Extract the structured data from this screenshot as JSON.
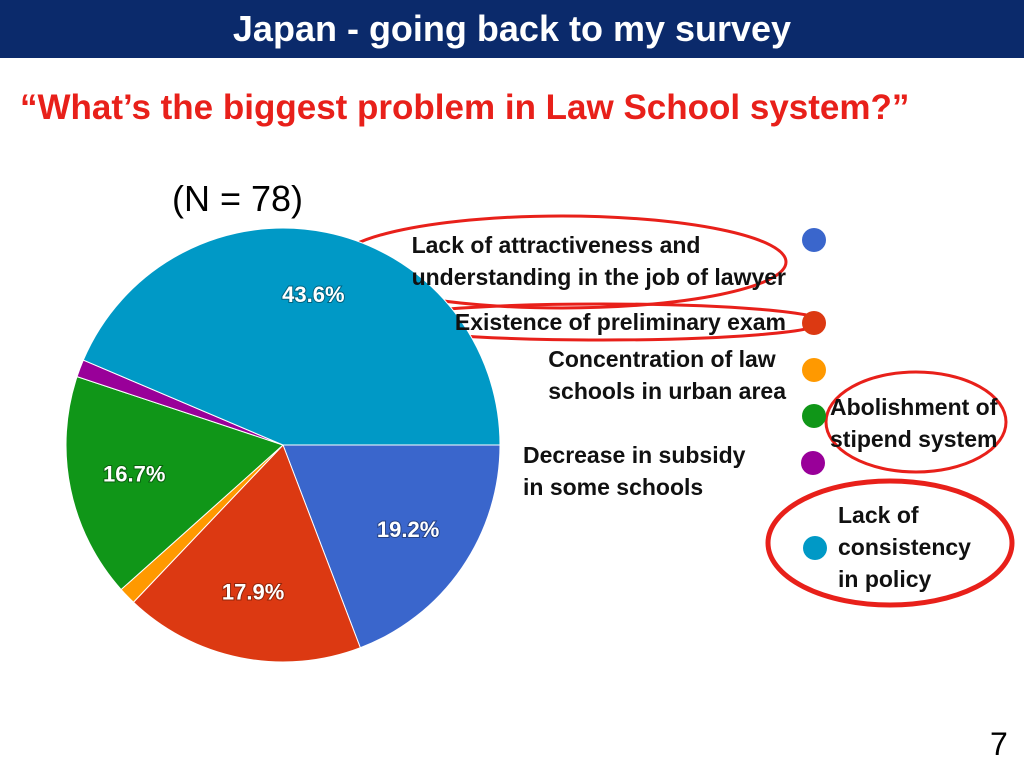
{
  "slide_title": "Japan -  going back to my survey",
  "page_number": "7",
  "chart_data": {
    "type": "pie",
    "title": "“What’s the biggest problem in Law School system?”",
    "subtitle": "(N = 78)",
    "categories": [
      "Lack of attractiveness and\nunderstanding in the job of lawyer",
      "Existence of preliminary exam",
      "Concentration of law\nschools in urban area",
      "Abolishment of\nstipend system",
      "Decrease in subsidy\nin some schools",
      "Lack of\nconsistency\nin policy"
    ],
    "values": [
      19.2,
      17.9,
      1.3,
      16.7,
      1.3,
      43.6
    ],
    "value_labels": [
      "19.2%",
      "17.9%",
      null,
      "16.7%",
      null,
      "43.6%"
    ],
    "colors": [
      "#3a66cc",
      "#dc3912",
      "#ff9900",
      "#109618",
      "#990099",
      "#0099c6"
    ]
  }
}
